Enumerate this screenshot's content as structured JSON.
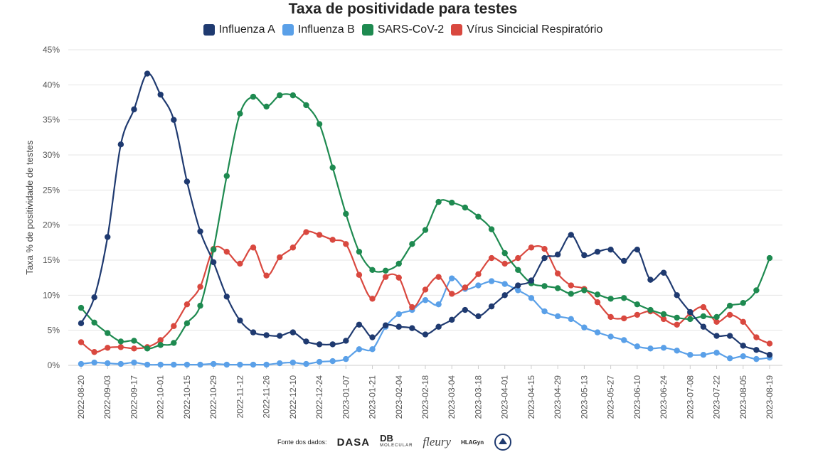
{
  "chart_data": {
    "type": "line",
    "title": "Taxa de positividade para testes",
    "ylabel": "Taxa % de positividade de testes",
    "ylim": [
      0,
      45
    ],
    "yticks": [
      "0%",
      "5%",
      "10%",
      "15%",
      "20%",
      "25%",
      "30%",
      "35%",
      "40%",
      "45%"
    ],
    "ytick_values": [
      0,
      5,
      10,
      15,
      20,
      25,
      30,
      35,
      40,
      45
    ],
    "xtick_labels": [
      "2022-08-20",
      "2022-09-03",
      "2022-09-17",
      "2022-10-01",
      "2022-10-15",
      "2022-10-29",
      "2022-11-12",
      "2022-11-26",
      "2022-12-10",
      "2022-12-24",
      "2023-01-07",
      "2023-01-21",
      "2023-02-04",
      "2023-02-18",
      "2023-03-04",
      "2023-03-18",
      "2023-04-01",
      "2023-04-15",
      "2023-04-29",
      "2023-05-13",
      "2023-05-27",
      "2023-06-10",
      "2023-06-24",
      "2023-07-08",
      "2023-07-22",
      "2023-08-05",
      "2023-08-19"
    ],
    "grid": true,
    "legend_position": "top",
    "series": [
      {
        "name": "Influenza A",
        "color": "#1f3a70",
        "values": [
          6.0,
          9.7,
          18.3,
          31.5,
          36.5,
          41.6,
          38.6,
          35.0,
          26.2,
          19.1,
          14.7,
          9.8,
          6.4,
          4.7,
          4.3,
          4.2,
          4.7,
          3.4,
          3.0,
          3.0,
          3.5,
          5.8,
          4.0,
          5.7,
          5.5,
          5.3,
          4.4,
          5.5,
          6.5,
          7.9,
          7.0,
          8.4,
          10.0,
          11.4,
          12.1,
          15.3,
          15.8,
          18.6,
          15.7,
          16.2,
          16.5,
          14.9,
          16.5,
          12.2,
          13.2,
          10.0,
          7.6,
          5.5,
          4.2,
          4.2,
          2.8,
          2.2,
          1.5
        ]
      },
      {
        "name": "Influenza B",
        "color": "#5aa0e8",
        "values": [
          0.2,
          0.4,
          0.3,
          0.2,
          0.4,
          0.1,
          0.1,
          0.1,
          0.1,
          0.1,
          0.2,
          0.1,
          0.1,
          0.1,
          0.1,
          0.3,
          0.4,
          0.2,
          0.5,
          0.6,
          0.9,
          2.3,
          2.3,
          5.5,
          7.3,
          7.9,
          9.3,
          8.7,
          12.4,
          10.9,
          11.4,
          12.0,
          11.6,
          10.7,
          9.6,
          7.7,
          7.0,
          6.6,
          5.4,
          4.7,
          4.1,
          3.6,
          2.7,
          2.4,
          2.5,
          2.1,
          1.5,
          1.5,
          1.8,
          1.0,
          1.3,
          0.9,
          1.1
        ]
      },
      {
        "name": "SARS-CoV-2",
        "color": "#1e8a50",
        "values": [
          8.2,
          6.1,
          4.6,
          3.4,
          3.5,
          2.4,
          2.9,
          3.2,
          6.0,
          8.5,
          16.5,
          27.0,
          35.9,
          38.3,
          36.9,
          38.5,
          38.5,
          37.1,
          34.4,
          28.2,
          21.6,
          16.2,
          13.6,
          13.5,
          14.5,
          17.3,
          19.3,
          23.3,
          23.2,
          22.5,
          21.2,
          19.4,
          16.0,
          13.6,
          11.7,
          11.3,
          11.0,
          10.2,
          10.7,
          10.1,
          9.5,
          9.6,
          8.7,
          7.9,
          7.3,
          6.8,
          6.6,
          7.0,
          6.9,
          8.5,
          8.9,
          10.7,
          15.3
        ]
      },
      {
        "name": "Vírus Sincicial Respiratório",
        "color": "#d9483f",
        "values": [
          3.3,
          1.9,
          2.5,
          2.6,
          2.4,
          2.6,
          3.6,
          5.6,
          8.7,
          11.2,
          16.6,
          16.2,
          14.5,
          16.8,
          12.8,
          15.4,
          16.8,
          19.0,
          18.6,
          17.9,
          17.3,
          12.9,
          9.5,
          12.6,
          12.5,
          8.3,
          10.8,
          12.6,
          10.2,
          11.1,
          13.0,
          15.3,
          14.5,
          15.3,
          16.8,
          16.6,
          13.1,
          11.4,
          10.9,
          9.0,
          6.9,
          6.7,
          7.2,
          7.7,
          6.6,
          5.8,
          7.4,
          8.3,
          6.2,
          7.2,
          6.2,
          4.0,
          3.1
        ]
      }
    ]
  },
  "footer": {
    "source_label": "Fonte dos dados:",
    "logo_dasa": "DASA",
    "logo_db": "DB",
    "logo_db_sub": "MOLECULAR",
    "logo_fleury": "fleury",
    "logo_hla": "HLAGyn"
  }
}
